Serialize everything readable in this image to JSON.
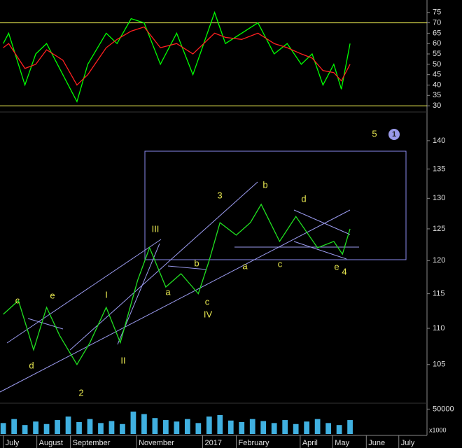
{
  "chart_data": [
    {
      "type": "line",
      "ylim": [
        27,
        81
      ],
      "xlim": [
        -3,
        391
      ],
      "yticks": [
        30,
        35,
        40,
        45,
        50,
        55,
        60,
        65,
        70,
        75
      ],
      "hlines": [
        70,
        30
      ],
      "hline_color": "#e8e850",
      "x": [
        0,
        5,
        20,
        30,
        40,
        55,
        68,
        78,
        95,
        105,
        118,
        130,
        145,
        160,
        175,
        195,
        205,
        220,
        235,
        250,
        262,
        275,
        285,
        295,
        305,
        312,
        320
      ],
      "series": [
        {
          "color": "#00ff00",
          "values": [
            60,
            65,
            40,
            55,
            60,
            45,
            32,
            50,
            65,
            60,
            72,
            70,
            50,
            65,
            45,
            75,
            60,
            65,
            70,
            55,
            60,
            50,
            55,
            40,
            50,
            38,
            60
          ]
        },
        {
          "color": "#ff2020",
          "values": [
            58,
            60,
            48,
            50,
            57,
            52,
            40,
            45,
            58,
            62,
            66,
            68,
            58,
            60,
            55,
            65,
            63,
            62,
            65,
            60,
            58,
            55,
            53,
            47,
            46,
            42,
            50
          ]
        }
      ]
    },
    {
      "type": "line",
      "log": true,
      "ylim": [
        100,
        144.6
      ],
      "xlim": [
        -3,
        391
      ],
      "yticks": [
        105,
        110,
        115,
        120,
        125,
        130,
        135,
        140
      ],
      "x": [
        0,
        14,
        28,
        40,
        52,
        68,
        80,
        95,
        108,
        124,
        135,
        150,
        164,
        180,
        190,
        200,
        215,
        228,
        238,
        255,
        270,
        290,
        305,
        313,
        320
      ],
      "series": [
        {
          "color": "#20e020",
          "values": [
            112,
            114,
            107,
            113,
            109,
            105,
            108,
            113,
            108,
            117,
            122,
            116,
            118,
            115,
            120,
            126,
            124,
            126,
            129,
            123,
            127,
            122,
            123,
            121,
            125
          ]
        }
      ],
      "annotations": [
        "c",
        "e",
        "d",
        "2",
        "I",
        "II",
        "III",
        "a",
        "b",
        "c",
        "IV",
        "3",
        "a",
        "b",
        "c",
        "d",
        "e",
        "4",
        "5",
        "1"
      ]
    },
    {
      "type": "bar",
      "ylim": [
        0,
        59000
      ],
      "xlim": [
        -3,
        391
      ],
      "color": "#40b0e0",
      "yticks": [
        50000
      ],
      "unit_label": "x1000",
      "x": [
        0,
        10,
        20,
        30,
        40,
        50,
        60,
        70,
        80,
        90,
        100,
        110,
        120,
        130,
        140,
        150,
        160,
        170,
        180,
        190,
        200,
        210,
        220,
        230,
        240,
        250,
        260,
        270,
        280,
        290,
        300,
        310,
        320
      ],
      "values": [
        22000,
        30000,
        18000,
        25000,
        20000,
        28000,
        35000,
        24000,
        30000,
        22000,
        26000,
        20000,
        45000,
        40000,
        32000,
        28000,
        25000,
        30000,
        22000,
        35000,
        38000,
        27000,
        24000,
        30000,
        26000,
        22000,
        28000,
        20000,
        25000,
        30000,
        22000,
        18000,
        28000
      ],
      "xticks": [
        {
          "value": 0,
          "label": "July"
        },
        {
          "value": 31,
          "label": "August"
        },
        {
          "value": 62,
          "label": "September"
        },
        {
          "value": 123,
          "label": "November"
        },
        {
          "value": 184,
          "label": "2017"
        },
        {
          "value": 215,
          "label": "February"
        },
        {
          "value": 274,
          "label": "April"
        },
        {
          "value": 304,
          "label": "May"
        },
        {
          "value": 335,
          "label": "June"
        },
        {
          "value": 365,
          "label": "July"
        }
      ]
    }
  ]
}
